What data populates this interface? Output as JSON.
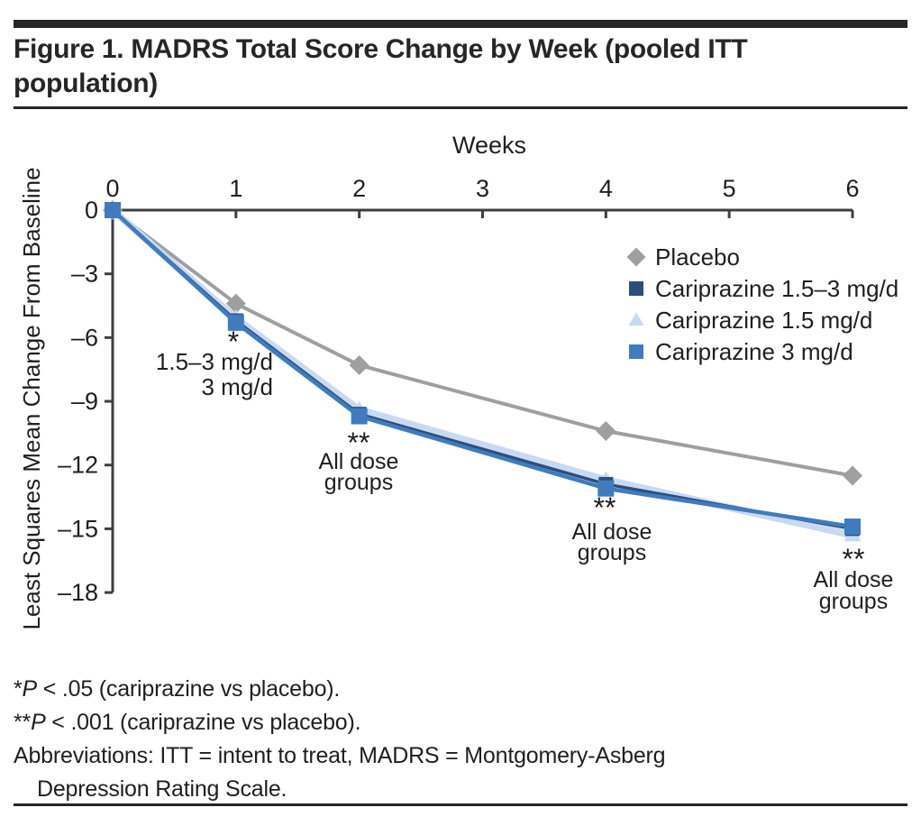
{
  "figure": {
    "title": "Figure 1. MADRS Total Score Change by Week (pooled ITT population)"
  },
  "chart_data": {
    "type": "line",
    "title": "Figure 1. MADRS Total Score Change by Week (pooled ITT population)",
    "xlabel": "Weeks",
    "ylabel": "Least Squares Mean Change From Baseline",
    "x": [
      0,
      1,
      2,
      4,
      6
    ],
    "x_tick_values": [
      0,
      1,
      2,
      3,
      4,
      5,
      6
    ],
    "x_ticks": [
      "0",
      "1",
      "2",
      "3",
      "4",
      "5",
      "6"
    ],
    "y_tick_values": [
      0,
      -3,
      -6,
      -9,
      -12,
      -15,
      -18
    ],
    "y_ticks": [
      "0",
      "–3",
      "–6",
      "–9",
      "–12",
      "–15",
      "–18"
    ],
    "xlim": [
      0,
      6
    ],
    "ylim": [
      -18.9,
      0
    ],
    "grid": false,
    "legend_position": "upper right inside",
    "axis_color": "#3f3f3f",
    "series": [
      {
        "name": "Placebo",
        "marker": "diamond",
        "color": "#9e9fa1",
        "line_width": 4,
        "marker_size": 11,
        "z": 1,
        "values": [
          0,
          -4.4,
          -7.3,
          -10.4,
          -12.5
        ]
      },
      {
        "name": "Cariprazine 1.5–3 mg/d",
        "marker": "square",
        "color": "#2d4d7c",
        "line_width": 3.5,
        "marker_size": 8,
        "z": 3,
        "values": [
          0,
          -5.2,
          -9.6,
          -12.9,
          -15.0
        ]
      },
      {
        "name": "Cariprazine 1.5 mg/d",
        "marker": "triangle",
        "color": "#c8daf2",
        "line_width": 8,
        "marker_size": 9.5,
        "z": 2,
        "values": [
          0,
          -5.1,
          -9.4,
          -12.7,
          -15.3
        ]
      },
      {
        "name": "Cariprazine 3 mg/d",
        "marker": "square",
        "color": "#3e7cbe",
        "line_width": 4.5,
        "marker_size": 9,
        "z": 4,
        "values": [
          0,
          -5.3,
          -9.7,
          -13.1,
          -14.9
        ]
      }
    ],
    "annotations": [
      {
        "symbol": "*",
        "lines": [
          "1.5–3 mg/d",
          "3 mg/d"
        ],
        "week": 1
      },
      {
        "symbol": "**",
        "lines": [
          "All dose",
          "groups"
        ],
        "week": 2
      },
      {
        "symbol": "**",
        "lines": [
          "All dose",
          "groups"
        ],
        "week": 4
      },
      {
        "symbol": "**",
        "lines": [
          "All dose",
          "groups"
        ],
        "week": 6
      }
    ]
  },
  "footnotes": {
    "star1_prefix": "*",
    "star1_p": "P",
    "star1_rest": " < .05 (cariprazine vs placebo).",
    "star2_prefix": "**",
    "star2_p": "P",
    "star2_rest": " < .001 (cariprazine vs placebo).",
    "abbrev_line1": "Abbreviations: ITT = intent to treat, MADRS = Montgomery-Asberg",
    "abbrev_line2": "Depression Rating Scale."
  }
}
